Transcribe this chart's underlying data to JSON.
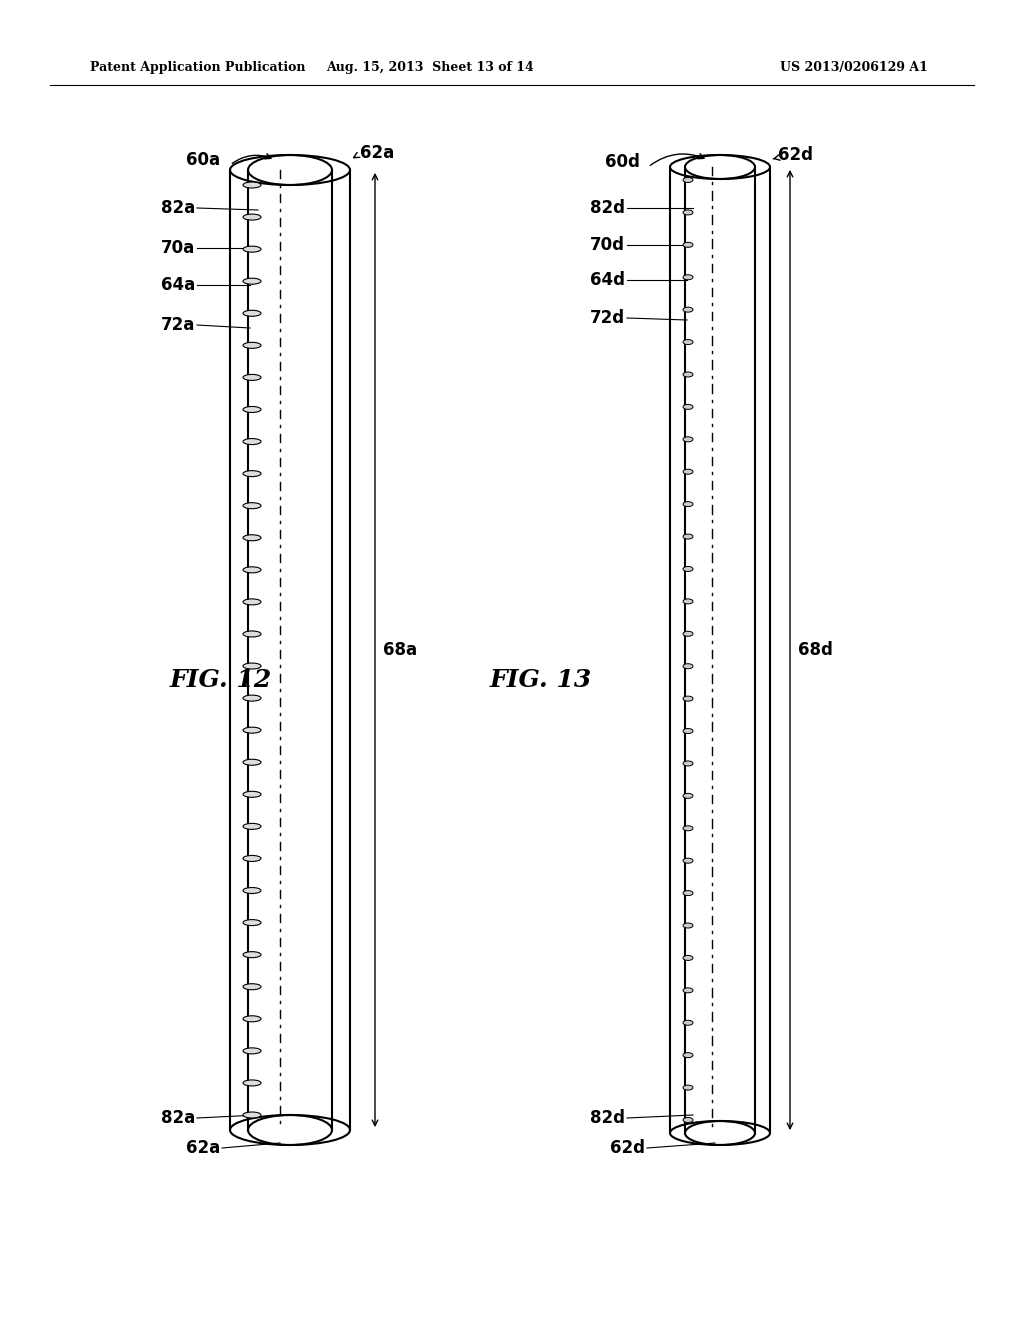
{
  "header_left": "Patent Application Publication",
  "header_middle": "Aug. 15, 2013  Sheet 13 of 14",
  "header_right": "US 2013/0206129 A1",
  "fig12_label": "FIG. 12",
  "fig13_label": "FIG. 13",
  "fig12_labels": {
    "60a_top": "60a",
    "62a_top": "62a",
    "82a_top": "82a",
    "70a": "70a",
    "64a": "64a",
    "72a": "72a",
    "68a": "68a",
    "82a_bot": "82a",
    "62a_bot": "62a"
  },
  "fig13_labels": {
    "60d_top": "60d",
    "62d_top": "62d",
    "82d_top": "82d",
    "70d": "70d",
    "64d": "64d",
    "72d": "72d",
    "68d": "68d",
    "82d_bot": "82d",
    "62d_bot": "62d"
  },
  "bg_color": "#ffffff",
  "line_color": "#000000"
}
